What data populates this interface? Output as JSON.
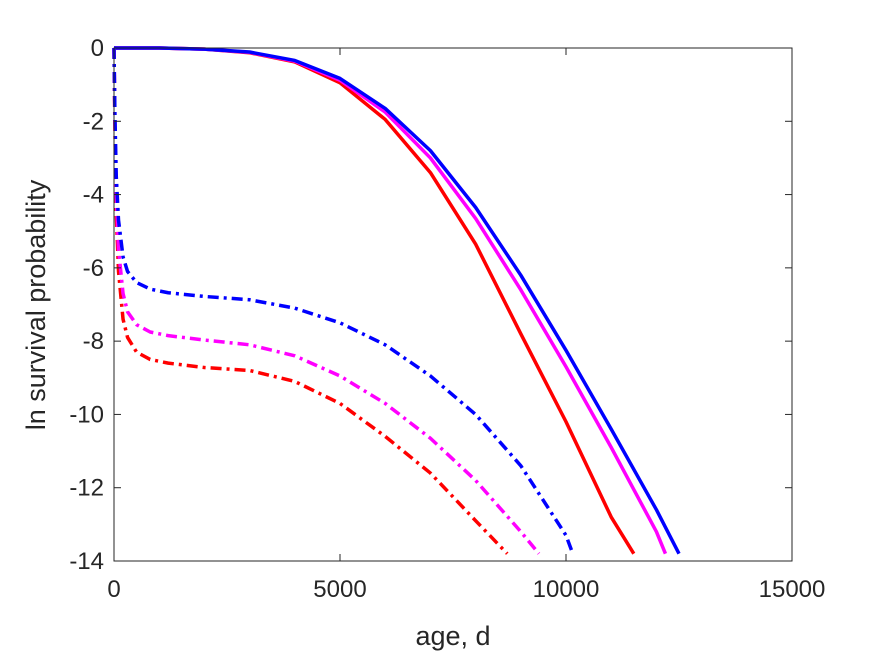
{
  "chart_data": {
    "type": "line",
    "title": "",
    "xlabel": "age, d",
    "ylabel": "ln survival probability",
    "xlim": [
      0,
      15000
    ],
    "ylim": [
      -14,
      0
    ],
    "xticks": [
      0,
      5000,
      10000,
      15000
    ],
    "yticks": [
      0,
      -2,
      -4,
      -6,
      -8,
      -10,
      -12,
      -14
    ],
    "grid": false,
    "legend": "none",
    "series": [
      {
        "color": "#ff0000",
        "style": "solid",
        "x": [
          0,
          1000,
          2000,
          3000,
          4000,
          5000,
          6000,
          7000,
          8000,
          9000,
          10000,
          11000,
          11500
        ],
        "y": [
          0,
          0,
          -0.03,
          -0.13,
          -0.38,
          -0.95,
          -1.95,
          -3.4,
          -5.35,
          -7.8,
          -10.2,
          -12.8,
          -13.8
        ]
      },
      {
        "color": "#ff00ff",
        "style": "solid",
        "x": [
          0,
          1000,
          2000,
          3000,
          4000,
          5000,
          6000,
          7000,
          8000,
          9000,
          10000,
          11000,
          12000,
          12200
        ],
        "y": [
          0,
          0,
          -0.03,
          -0.12,
          -0.36,
          -0.88,
          -1.75,
          -3.0,
          -4.65,
          -6.6,
          -8.7,
          -10.9,
          -13.2,
          -13.8
        ]
      },
      {
        "color": "#0000ff",
        "style": "solid",
        "x": [
          0,
          1000,
          2000,
          3000,
          4000,
          5000,
          6000,
          7000,
          8000,
          9000,
          10000,
          11000,
          12000,
          12500
        ],
        "y": [
          0,
          0,
          -0.03,
          -0.11,
          -0.34,
          -0.83,
          -1.65,
          -2.8,
          -4.35,
          -6.2,
          -8.25,
          -10.4,
          -12.6,
          -13.8
        ]
      },
      {
        "color": "#ff0000",
        "style": "dashdot",
        "x": [
          0,
          20,
          50,
          100,
          200,
          300,
          500,
          800,
          1200,
          2000,
          3000,
          4000,
          5000,
          6000,
          7000,
          8000,
          8700
        ],
        "y": [
          0,
          -2.2,
          -4.5,
          -6.1,
          -7.4,
          -7.9,
          -8.3,
          -8.5,
          -8.6,
          -8.72,
          -8.8,
          -9.1,
          -9.7,
          -10.6,
          -11.6,
          -12.9,
          -13.8
        ]
      },
      {
        "color": "#ff00ff",
        "style": "dashdot",
        "x": [
          0,
          20,
          50,
          100,
          200,
          300,
          500,
          800,
          1200,
          2000,
          3000,
          4000,
          5000,
          6000,
          7000,
          8000,
          9000,
          9400
        ],
        "y": [
          0,
          -2.0,
          -4.0,
          -5.5,
          -6.7,
          -7.2,
          -7.55,
          -7.75,
          -7.85,
          -7.97,
          -8.1,
          -8.4,
          -8.95,
          -9.7,
          -10.65,
          -11.8,
          -13.2,
          -13.8
        ]
      },
      {
        "color": "#0000ff",
        "style": "dashdot",
        "x": [
          0,
          20,
          50,
          100,
          200,
          300,
          500,
          800,
          1200,
          2000,
          3000,
          4000,
          5000,
          6000,
          7000,
          8000,
          9000,
          10000,
          10150
        ],
        "y": [
          0,
          -1.8,
          -3.5,
          -4.7,
          -5.7,
          -6.1,
          -6.4,
          -6.58,
          -6.68,
          -6.78,
          -6.87,
          -7.1,
          -7.5,
          -8.1,
          -8.95,
          -10.0,
          -11.4,
          -13.3,
          -13.8
        ]
      }
    ]
  }
}
